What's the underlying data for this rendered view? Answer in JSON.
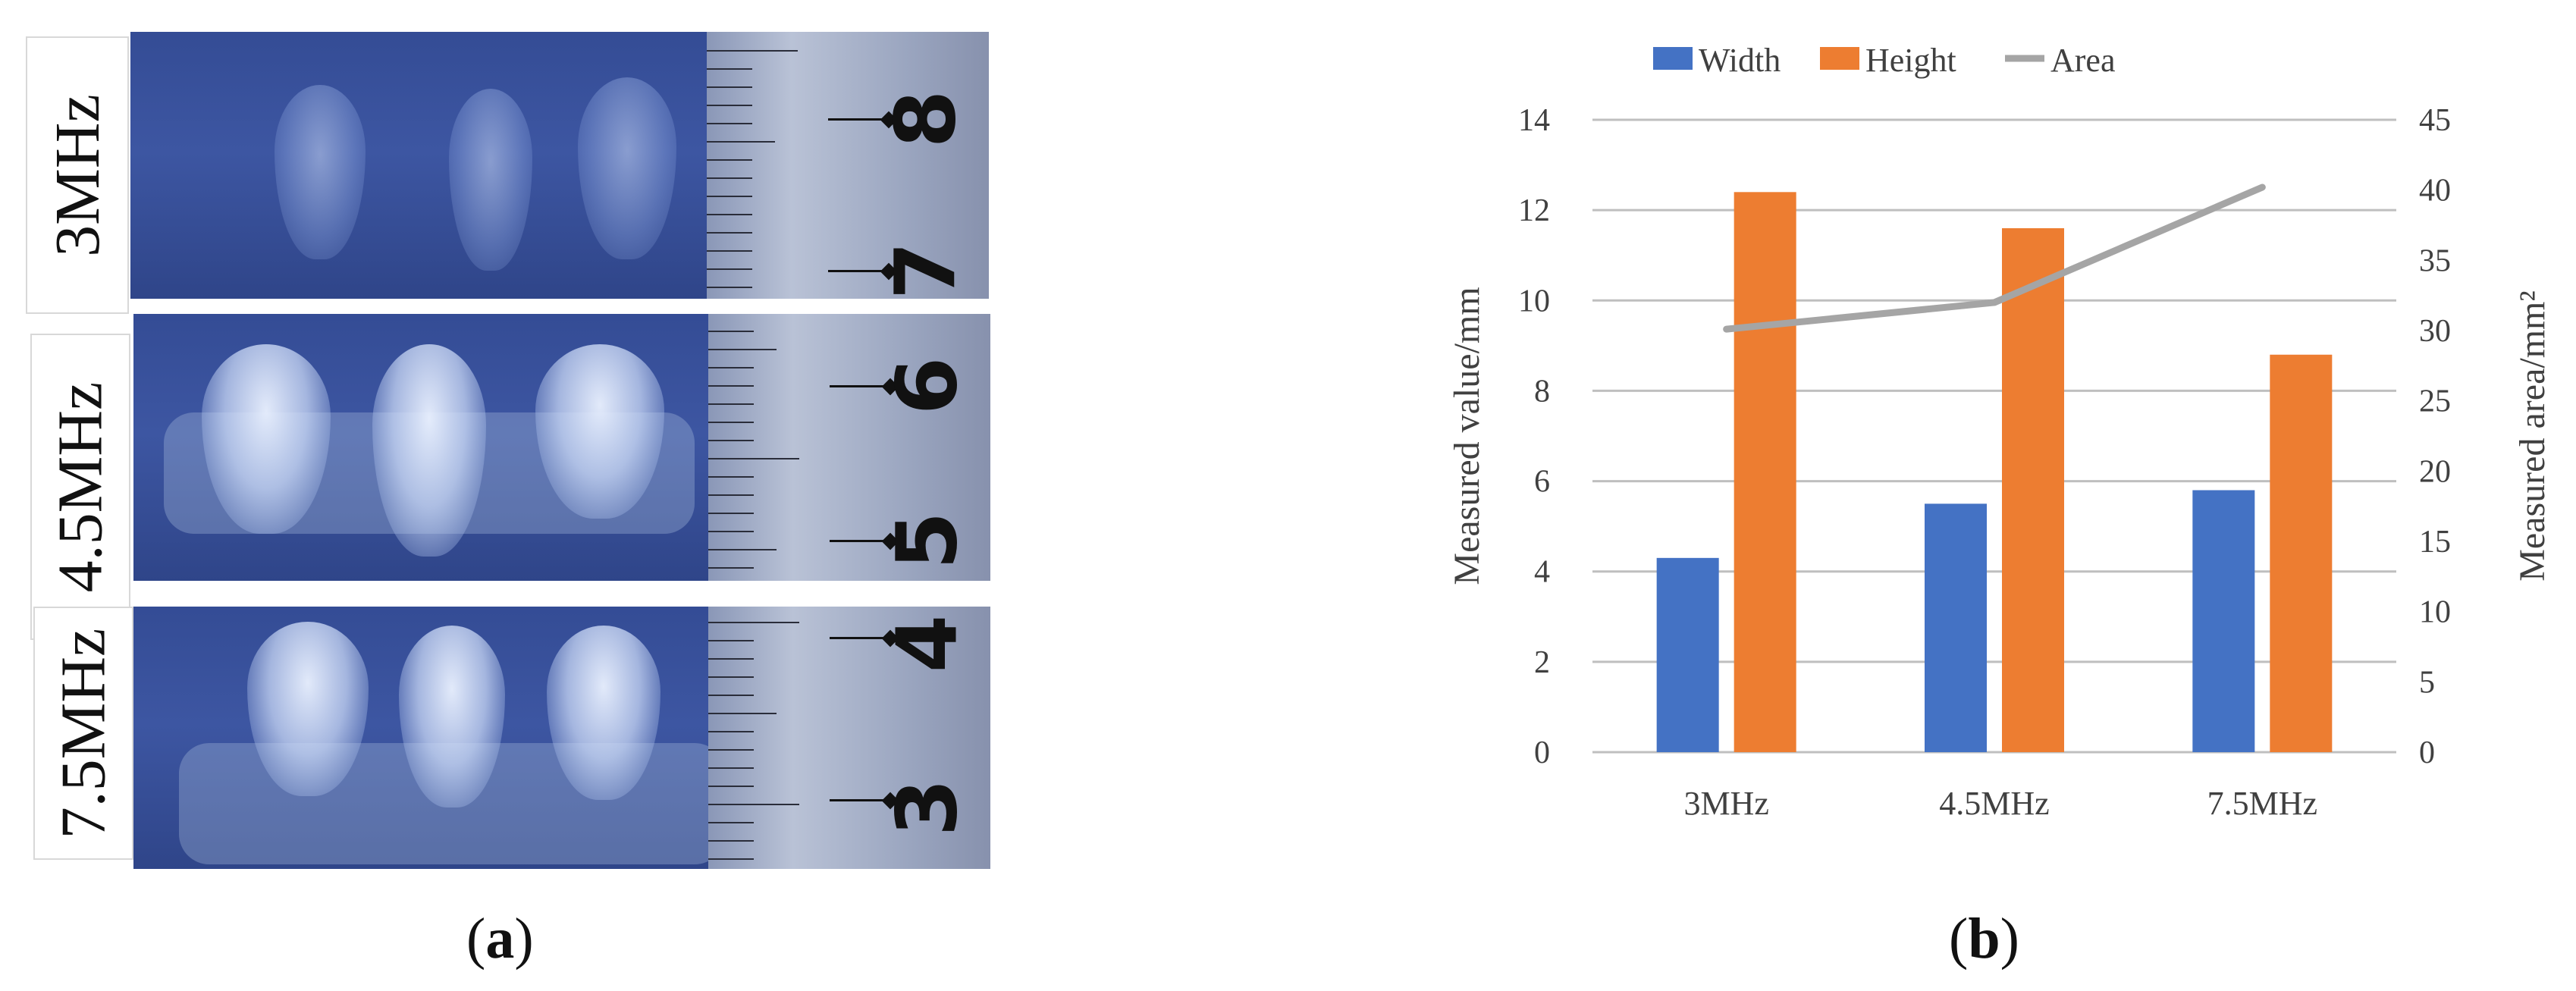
{
  "panel_a": {
    "label_letter": "a",
    "rows": [
      {
        "frequency": "3MHz",
        "ruler_marks": [
          "8",
          "7"
        ]
      },
      {
        "frequency": "4.5MHz",
        "ruler_marks": [
          "6",
          "5"
        ]
      },
      {
        "frequency": "7.5MHz",
        "ruler_marks": [
          "4",
          "3"
        ]
      }
    ]
  },
  "panel_b": {
    "label_letter": "b"
  },
  "chart_data": {
    "type": "bar",
    "categories": [
      "3MHz",
      "4.5MHz",
      "7.5MHz"
    ],
    "series": [
      {
        "name": "Width",
        "type": "bar",
        "axis": "left",
        "color": "#4472c4",
        "values": [
          4.3,
          5.5,
          5.8
        ]
      },
      {
        "name": "Height",
        "type": "bar",
        "axis": "left",
        "color": "#ed7d31",
        "values": [
          12.4,
          11.6,
          8.8
        ]
      },
      {
        "name": "Area",
        "type": "line",
        "axis": "right",
        "color": "#a5a5a5",
        "values": [
          30.1,
          32.0,
          40.2
        ]
      }
    ],
    "ylabel": "Measured value/mm",
    "y2label": "Measured area/mm²",
    "ylim": [
      0,
      14
    ],
    "y2lim": [
      0,
      45
    ],
    "yticks": [
      "0",
      "2",
      "4",
      "6",
      "8",
      "10",
      "12",
      "14"
    ],
    "y2ticks": [
      "0",
      "5",
      "10",
      "15",
      "20",
      "25",
      "30",
      "35",
      "40",
      "45"
    ],
    "legend_position": "top-center",
    "grid": true
  }
}
